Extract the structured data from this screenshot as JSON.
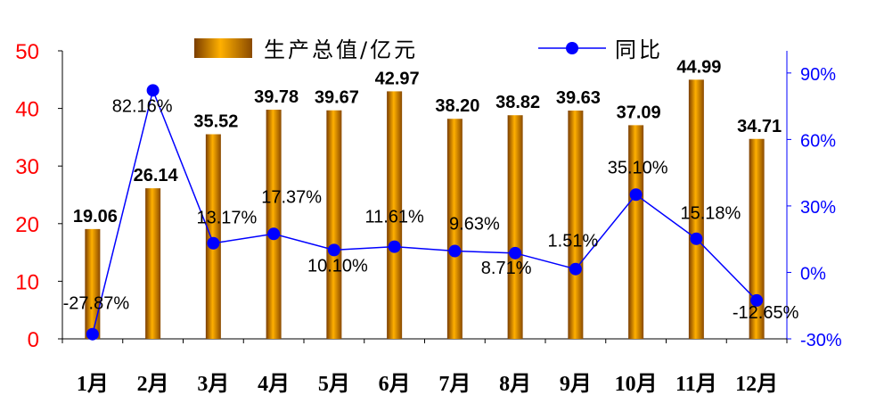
{
  "chart_data": {
    "type": "bar",
    "categories": [
      "1月",
      "2月",
      "3月",
      "4月",
      "5月",
      "6月",
      "7月",
      "8月",
      "9月",
      "10月",
      "11月",
      "12月"
    ],
    "series": [
      {
        "name": "生产总值/亿元",
        "type": "bar",
        "axis": "left",
        "values": [
          19.06,
          26.14,
          35.52,
          39.78,
          39.67,
          42.97,
          38.2,
          38.82,
          39.63,
          37.09,
          44.99,
          34.71
        ],
        "labels": [
          "19.06",
          "26.14",
          "35.52",
          "39.78",
          "39.67",
          "42.97",
          "38.20",
          "38.82",
          "39.63",
          "37.09",
          "44.99",
          "34.71"
        ]
      },
      {
        "name": "同比",
        "type": "line",
        "axis": "right",
        "values": [
          -27.87,
          82.16,
          13.17,
          17.37,
          10.1,
          11.61,
          9.63,
          8.71,
          1.51,
          35.1,
          15.18,
          -12.65
        ],
        "labels": [
          "-27.87%",
          "82.16%",
          "13.17%",
          "17.37%",
          "10.10%",
          "11.61%",
          "9.63%",
          "8.71%",
          "1.51%",
          "35.10%",
          "15.18%",
          "-12.65%"
        ]
      }
    ],
    "y_left": {
      "ylim": [
        0,
        50
      ],
      "ticks": [
        "0",
        "10",
        "20",
        "30",
        "40",
        "50"
      ]
    },
    "y_right": {
      "ylim": [
        -30,
        100
      ],
      "ticks": [
        "-30%",
        "0%",
        "30%",
        "60%",
        "90%"
      ]
    },
    "legend": {
      "position": "top"
    },
    "grid": false,
    "colors": {
      "bar_dark": "#8a4a00",
      "bar_light": "#ffb000",
      "line": "#0000ff",
      "left_axis": "#ff0000",
      "right_axis": "#0000ff"
    }
  }
}
